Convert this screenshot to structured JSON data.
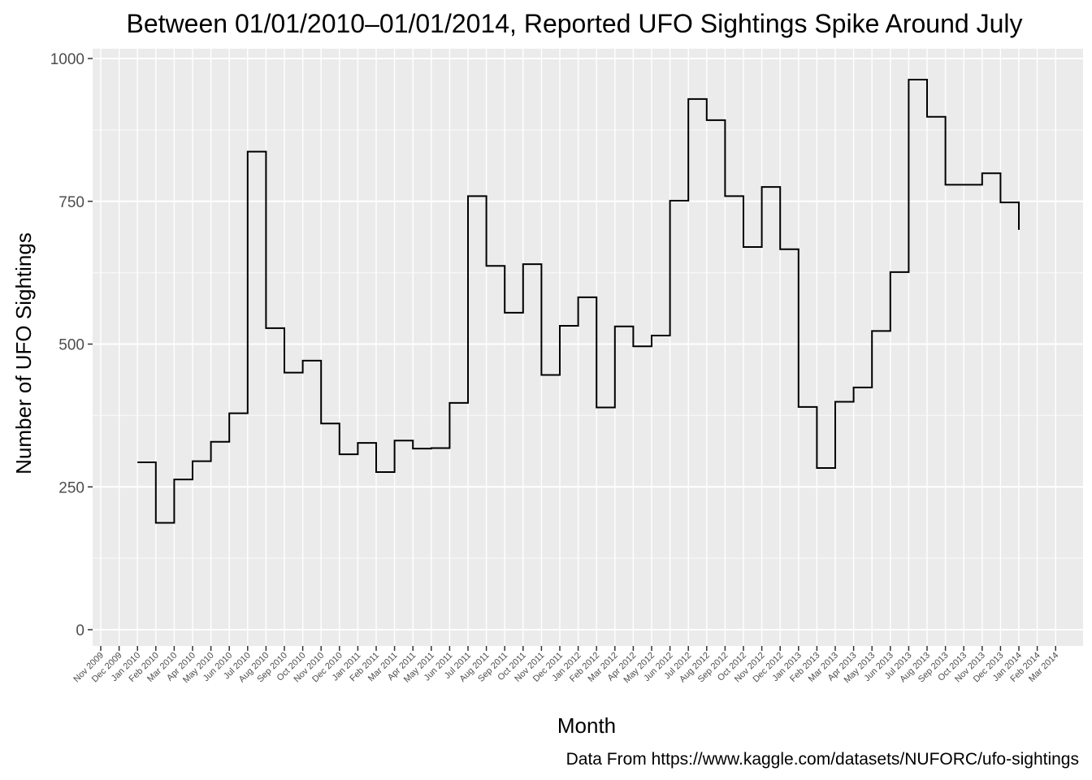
{
  "chart_data": {
    "type": "line",
    "style": "step",
    "title": "Between 01/01/2010–01/01/2014, Reported UFO Sightings Spike Around July",
    "xlabel": "Month",
    "ylabel": "Number of UFO Sightings",
    "caption": "Data From https://www.kaggle.com/datasets/NUFORC/ufo-sightings",
    "ylim": [
      -28,
      1010
    ],
    "yticks": [
      0,
      250,
      500,
      750,
      1000
    ],
    "x_tick_labels": [
      "Nov 2009",
      "Dec 2009",
      "Jan 2010",
      "Feb 2010",
      "Mar 2010",
      "Apr 2010",
      "May 2010",
      "Jun 2010",
      "Jul 2010",
      "Aug 2010",
      "Sep 2010",
      "Oct 2010",
      "Nov 2010",
      "Dec 2010",
      "Jan 2011",
      "Feb 2011",
      "Mar 2011",
      "Apr 2011",
      "May 2011",
      "Jun 2011",
      "Jul 2011",
      "Aug 2011",
      "Sep 2011",
      "Oct 2011",
      "Nov 2011",
      "Dec 2011",
      "Jan 2012",
      "Feb 2012",
      "Mar 2012",
      "Apr 2012",
      "May 2012",
      "Jun 2012",
      "Jul 2012",
      "Aug 2012",
      "Sep 2012",
      "Oct 2012",
      "Nov 2012",
      "Dec 2012",
      "Jan 2013",
      "Feb 2013",
      "Mar 2013",
      "Apr 2013",
      "May 2013",
      "Jun 2013",
      "Jul 2013",
      "Aug 2013",
      "Sep 2013",
      "Oct 2013",
      "Nov 2013",
      "Dec 2013",
      "Jan 2014",
      "Feb 2014",
      "Mar 2014"
    ],
    "grid": true,
    "legend": "none",
    "line_color": "#000000",
    "background_color": "#ebebeb",
    "series": [
      {
        "x": [
          "Jan 2010",
          "Feb 2010",
          "Mar 2010",
          "Apr 2010",
          "May 2010",
          "Jun 2010",
          "Jul 2010",
          "Aug 2010",
          "Sep 2010",
          "Oct 2010",
          "Nov 2010",
          "Dec 2010",
          "Jan 2011",
          "Feb 2011",
          "Mar 2011",
          "Apr 2011",
          "May 2011",
          "Jun 2011",
          "Jul 2011",
          "Aug 2011",
          "Sep 2011",
          "Oct 2011",
          "Nov 2011",
          "Dec 2011",
          "Jan 2012",
          "Feb 2012",
          "Mar 2012",
          "Apr 2012",
          "May 2012",
          "Jun 2012",
          "Jul 2012",
          "Aug 2012",
          "Sep 2012",
          "Oct 2012",
          "Nov 2012",
          "Dec 2012",
          "Jan 2013",
          "Feb 2013",
          "Mar 2013",
          "Apr 2013",
          "May 2013",
          "Jun 2013",
          "Jul 2013",
          "Aug 2013",
          "Sep 2013",
          "Oct 2013",
          "Nov 2013",
          "Dec 2013",
          "Jan 2014"
        ],
        "values": [
          293,
          187,
          263,
          295,
          329,
          379,
          837,
          528,
          450,
          471,
          361,
          307,
          327,
          276,
          331,
          317,
          318,
          397,
          759,
          637,
          555,
          640,
          446,
          532,
          582,
          389,
          531,
          496,
          515,
          751,
          929,
          892,
          759,
          670,
          775,
          666,
          390,
          283,
          399,
          424,
          523,
          626,
          963,
          898,
          779,
          779,
          799,
          748,
          700
        ]
      }
    ]
  }
}
